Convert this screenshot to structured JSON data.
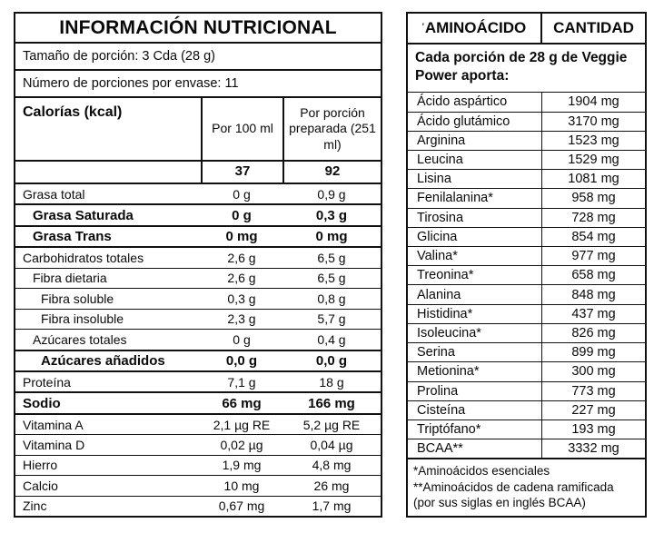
{
  "nutrition_table": {
    "title": "INFORMACIÓN NUTRICIONAL",
    "serving_size": "Tamaño de porción: 3 Cda (28 g)",
    "servings_per_container": "Número de porciones por envase: 11",
    "calories_label": "Calorías (kcal)",
    "col1_header": "Por 100 ml",
    "col2_header": "Por porción preparada (251 ml)",
    "calories_per_100ml": "37",
    "calories_per_serving": "92",
    "rows": [
      {
        "label": "Grasa total",
        "per_100ml": "0 g",
        "per_serving": "0,9 g",
        "bold": false,
        "indent": 0
      },
      {
        "label": "Grasa Saturada",
        "per_100ml": "0 g",
        "per_serving": "0,3 g",
        "bold": true,
        "indent": 1
      },
      {
        "label": "Grasa Trans",
        "per_100ml": "0 mg",
        "per_serving": "0 mg",
        "bold": true,
        "indent": 1
      },
      {
        "label": "Carbohidratos totales",
        "per_100ml": "2,6 g",
        "per_serving": "6,5 g",
        "bold": false,
        "indent": 0
      },
      {
        "label": "Fibra dietaria",
        "per_100ml": "2,6 g",
        "per_serving": "6,5 g",
        "bold": false,
        "indent": 1
      },
      {
        "label": "Fibra soluble",
        "per_100ml": "0,3 g",
        "per_serving": "0,8 g",
        "bold": false,
        "indent": 2
      },
      {
        "label": "Fibra insoluble",
        "per_100ml": "2,3 g",
        "per_serving": "5,7 g",
        "bold": false,
        "indent": 2
      },
      {
        "label": "Azúcares totales",
        "per_100ml": "0 g",
        "per_serving": "0,4 g",
        "bold": false,
        "indent": 1
      },
      {
        "label": "Azúcares añadidos",
        "per_100ml": "0,0 g",
        "per_serving": "0,0 g",
        "bold": true,
        "indent": 2
      },
      {
        "label": "Proteína",
        "per_100ml": "7,1 g",
        "per_serving": "18 g",
        "bold": false,
        "indent": 0
      },
      {
        "label": "Sodio",
        "per_100ml": "66 mg",
        "per_serving": "166 mg",
        "bold": true,
        "indent": 0
      },
      {
        "label": "Vitamina A",
        "per_100ml": "2,1 µg RE",
        "per_serving": "5,2 µg RE",
        "bold": false,
        "indent": 0
      },
      {
        "label": "Vitamina D",
        "per_100ml": "0,02 µg",
        "per_serving": "0,04 µg",
        "bold": false,
        "indent": 0
      },
      {
        "label": "Hierro",
        "per_100ml": "1,9 mg",
        "per_serving": "4,8 mg",
        "bold": false,
        "indent": 0
      },
      {
        "label": "Calcio",
        "per_100ml": "10 mg",
        "per_serving": "26 mg",
        "bold": false,
        "indent": 0
      },
      {
        "label": "Zinc",
        "per_100ml": "0,67 mg",
        "per_serving": "1,7 mg",
        "bold": false,
        "indent": 0
      }
    ]
  },
  "amino_table": {
    "header_mark": "'",
    "col_amino": "AMINOÁCIDO",
    "col_amount": "CANTIDAD",
    "subheader": "Cada porción de 28 g de Veggie Power aporta:",
    "rows": [
      {
        "name": "Ácido aspártico",
        "amount": "1904 mg"
      },
      {
        "name": "Ácido glutámico",
        "amount": "3170 mg"
      },
      {
        "name": "Arginina",
        "amount": "1523 mg"
      },
      {
        "name": "Leucina",
        "amount": "1529 mg"
      },
      {
        "name": "Lisina",
        "amount": "1081 mg"
      },
      {
        "name": "Fenilalanina*",
        "amount": "958 mg"
      },
      {
        "name": "Tirosina",
        "amount": "728 mg"
      },
      {
        "name": "Glicina",
        "amount": "854 mg"
      },
      {
        "name": "Valina*",
        "amount": "977 mg"
      },
      {
        "name": "Treonina*",
        "amount": "658 mg"
      },
      {
        "name": "Alanina",
        "amount": "848 mg"
      },
      {
        "name": "Histidina*",
        "amount": "437 mg"
      },
      {
        "name": "Isoleucina*",
        "amount": "826 mg"
      },
      {
        "name": "Serina",
        "amount": "899 mg"
      },
      {
        "name": "Metionina*",
        "amount": "300 mg"
      },
      {
        "name": "Prolina",
        "amount": "773 mg"
      },
      {
        "name": "Cisteína",
        "amount": "227 mg"
      },
      {
        "name": "Triptófano*",
        "amount": "193 mg"
      },
      {
        "name": "BCAA**",
        "amount": "3332 mg"
      }
    ],
    "footnotes": [
      "*Aminoácidos esenciales",
      "**Aminoácidos de cadena ramificada",
      "(por sus siglas en inglés BCAA)"
    ]
  }
}
